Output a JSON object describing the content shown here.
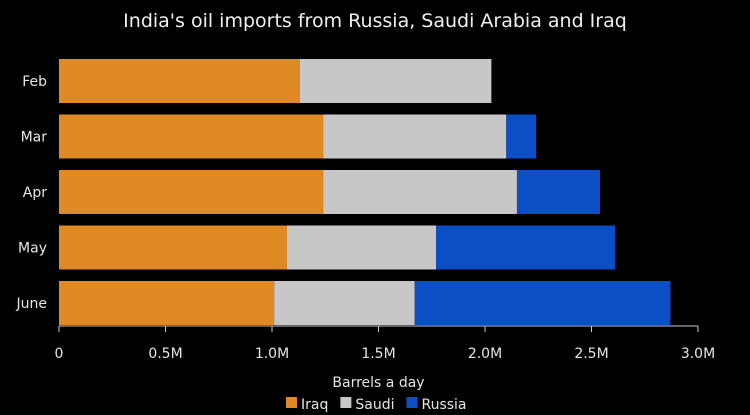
{
  "chart_data": {
    "type": "bar",
    "orientation": "horizontal",
    "stacked": true,
    "title": "India's oil imports from Russia, Saudi Arabia and Iraq",
    "xlabel": "Barrels a day",
    "ylabel": "",
    "categories": [
      "Feb",
      "Mar",
      "Apr",
      "May",
      "June"
    ],
    "series": [
      {
        "name": "Iraq",
        "color": "#e08a26",
        "values": [
          1.13,
          1.24,
          1.24,
          1.07,
          1.01
        ]
      },
      {
        "name": "Saudi",
        "color": "#c7c7c7",
        "values": [
          0.9,
          0.86,
          0.91,
          0.7,
          0.66
        ]
      },
      {
        "name": "Russia",
        "color": "#0c4fc4",
        "values": [
          0.0,
          0.14,
          0.39,
          0.84,
          1.2
        ]
      }
    ],
    "xlim": [
      0,
      3.0
    ],
    "xticks": [
      0,
      0.5,
      1.0,
      1.5,
      2.0,
      2.5,
      3.0
    ],
    "xtick_labels": [
      "0",
      "0.5M",
      "1.0M",
      "1.5M",
      "2.0M",
      "2.5M",
      "3.0M"
    ],
    "value_unit": "million barrels a day",
    "grid": false,
    "legend_position": "bottom"
  }
}
